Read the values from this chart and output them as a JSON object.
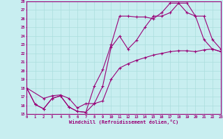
{
  "xlabel": "Windchill (Refroidissement éolien,°C)",
  "bg_color": "#c8eef0",
  "line_color": "#990077",
  "grid_color": "#aadddd",
  "xmin": 0,
  "xmax": 23,
  "ymin": 15,
  "ymax": 28,
  "line1_x": [
    0,
    1,
    2,
    3,
    4,
    5,
    6,
    7,
    8,
    9,
    10,
    11,
    12,
    13,
    14,
    15,
    16,
    17,
    18,
    19,
    20,
    21,
    22,
    23
  ],
  "line1_y": [
    18.0,
    16.1,
    15.6,
    16.8,
    17.1,
    15.8,
    15.3,
    15.2,
    18.2,
    20.1,
    23.0,
    26.3,
    26.3,
    26.2,
    26.2,
    26.0,
    26.7,
    27.8,
    27.8,
    26.7,
    26.3,
    23.6,
    22.5,
    22.2
  ],
  "line2_x": [
    0,
    1,
    2,
    3,
    4,
    5,
    6,
    7,
    8,
    9,
    10,
    11,
    12,
    13,
    14,
    15,
    16,
    17,
    18,
    19,
    20,
    21,
    22,
    23
  ],
  "line2_y": [
    18.0,
    16.1,
    15.6,
    16.8,
    17.1,
    15.8,
    15.3,
    15.2,
    16.2,
    16.5,
    19.0,
    20.3,
    20.8,
    21.2,
    21.5,
    21.8,
    22.0,
    22.2,
    22.3,
    22.3,
    22.2,
    22.4,
    22.5,
    22.2
  ],
  "line3_x": [
    0,
    2,
    3,
    4,
    5,
    6,
    7,
    8,
    9,
    10,
    11,
    12,
    13,
    14,
    15,
    16,
    17,
    18,
    19,
    20,
    21,
    22,
    23
  ],
  "line3_y": [
    18.0,
    16.8,
    17.1,
    17.2,
    16.8,
    15.7,
    16.2,
    16.2,
    18.2,
    22.7,
    24.0,
    22.5,
    23.5,
    25.0,
    26.3,
    26.3,
    26.7,
    27.8,
    27.8,
    26.3,
    26.3,
    23.6,
    22.5
  ]
}
